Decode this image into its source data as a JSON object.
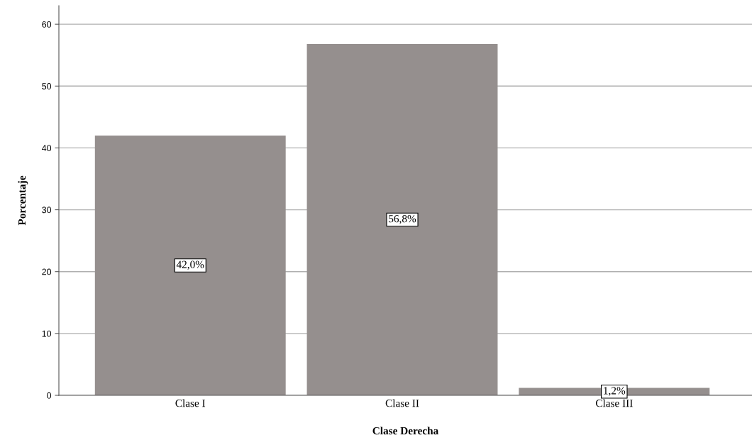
{
  "chart_data": {
    "type": "bar",
    "xlabel": "Clase Derecha",
    "ylabel": "Porcentaje",
    "categories": [
      "Clase I",
      "Clase II",
      "Clase III"
    ],
    "values": [
      42.0,
      56.8,
      1.2
    ],
    "value_labels": [
      "42,0%",
      "56,8%",
      "1,2%"
    ],
    "color": "#958f8e",
    "ylim": [
      0,
      63
    ],
    "yticks": [
      0,
      10,
      20,
      30,
      40,
      50,
      60
    ],
    "grid": "y"
  }
}
